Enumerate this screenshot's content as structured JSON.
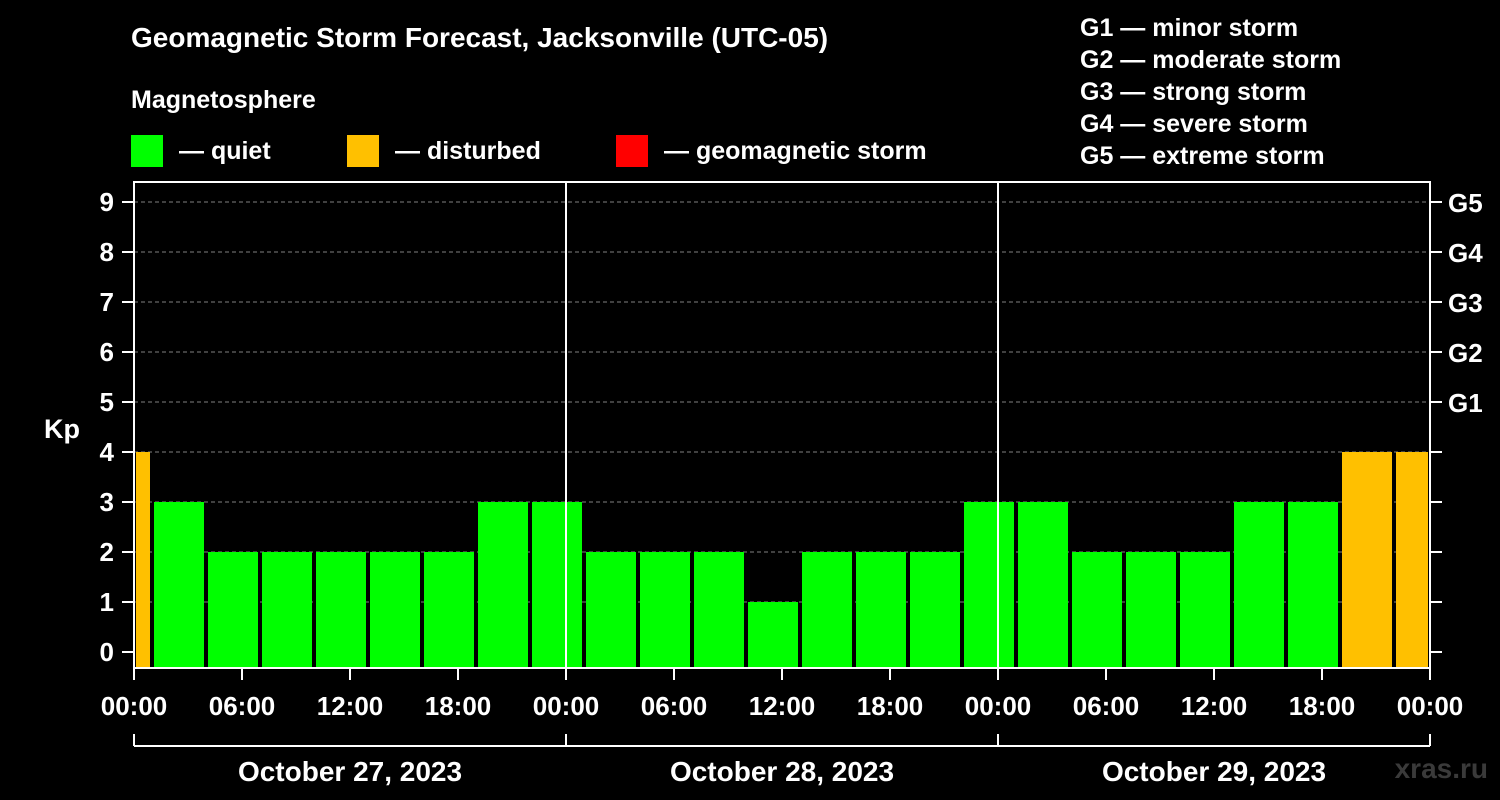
{
  "header": {
    "title": "Geomagnetic Storm Forecast, Jacksonville (UTC-05)",
    "subtitle": "Magnetosphere"
  },
  "legend": {
    "items": [
      {
        "label": "— quiet",
        "color": "#00ff00"
      },
      {
        "label": "— disturbed",
        "color": "#ffc000"
      },
      {
        "label": "— geomagnetic storm",
        "color": "#ff0000"
      }
    ]
  },
  "storm_levels": [
    "G1 — minor storm",
    "G2 — moderate storm",
    "G3 — strong storm",
    "G4 — severe storm",
    "G5 — extreme storm"
  ],
  "watermark": "xras.ru",
  "chart_data": {
    "type": "bar",
    "ylabel": "Kp",
    "ylim": [
      0,
      9
    ],
    "yticks": [
      0,
      1,
      2,
      3,
      4,
      5,
      6,
      7,
      8,
      9
    ],
    "right_ticks": [
      {
        "kp": 5,
        "label": "G1"
      },
      {
        "kp": 6,
        "label": "G2"
      },
      {
        "kp": 7,
        "label": "G3"
      },
      {
        "kp": 8,
        "label": "G4"
      },
      {
        "kp": 9,
        "label": "G5"
      }
    ],
    "grid": true,
    "x_range_hours": [
      0,
      72
    ],
    "xtick_labels": [
      "00:00",
      "06:00",
      "12:00",
      "18:00",
      "00:00",
      "06:00",
      "12:00",
      "18:00",
      "00:00",
      "06:00",
      "12:00",
      "18:00",
      "00:00"
    ],
    "dates": [
      "October 27, 2023",
      "October 28, 2023",
      "October 29, 2023"
    ],
    "colors": {
      "quiet": "#00ff00",
      "disturbed": "#ffc000",
      "storm": "#ff0000"
    },
    "bars": [
      {
        "start": 0,
        "end": 1,
        "kp": 4,
        "level": "disturbed"
      },
      {
        "start": 1,
        "end": 4,
        "kp": 3,
        "level": "quiet"
      },
      {
        "start": 4,
        "end": 7,
        "kp": 2,
        "level": "quiet"
      },
      {
        "start": 7,
        "end": 10,
        "kp": 2,
        "level": "quiet"
      },
      {
        "start": 10,
        "end": 13,
        "kp": 2,
        "level": "quiet"
      },
      {
        "start": 13,
        "end": 16,
        "kp": 2,
        "level": "quiet"
      },
      {
        "start": 16,
        "end": 19,
        "kp": 2,
        "level": "quiet"
      },
      {
        "start": 19,
        "end": 22,
        "kp": 3,
        "level": "quiet"
      },
      {
        "start": 22,
        "end": 25,
        "kp": 3,
        "level": "quiet"
      },
      {
        "start": 25,
        "end": 28,
        "kp": 2,
        "level": "quiet"
      },
      {
        "start": 28,
        "end": 31,
        "kp": 2,
        "level": "quiet"
      },
      {
        "start": 31,
        "end": 34,
        "kp": 2,
        "level": "quiet"
      },
      {
        "start": 34,
        "end": 37,
        "kp": 1,
        "level": "quiet"
      },
      {
        "start": 37,
        "end": 40,
        "kp": 2,
        "level": "quiet"
      },
      {
        "start": 40,
        "end": 43,
        "kp": 2,
        "level": "quiet"
      },
      {
        "start": 43,
        "end": 46,
        "kp": 2,
        "level": "quiet"
      },
      {
        "start": 46,
        "end": 49,
        "kp": 3,
        "level": "quiet"
      },
      {
        "start": 49,
        "end": 52,
        "kp": 3,
        "level": "quiet"
      },
      {
        "start": 52,
        "end": 55,
        "kp": 2,
        "level": "quiet"
      },
      {
        "start": 55,
        "end": 58,
        "kp": 2,
        "level": "quiet"
      },
      {
        "start": 58,
        "end": 61,
        "kp": 2,
        "level": "quiet"
      },
      {
        "start": 61,
        "end": 64,
        "kp": 3,
        "level": "quiet"
      },
      {
        "start": 64,
        "end": 67,
        "kp": 3,
        "level": "quiet"
      },
      {
        "start": 67,
        "end": 70,
        "kp": 4,
        "level": "disturbed"
      },
      {
        "start": 70,
        "end": 72,
        "kp": 4,
        "level": "disturbed"
      }
    ]
  }
}
